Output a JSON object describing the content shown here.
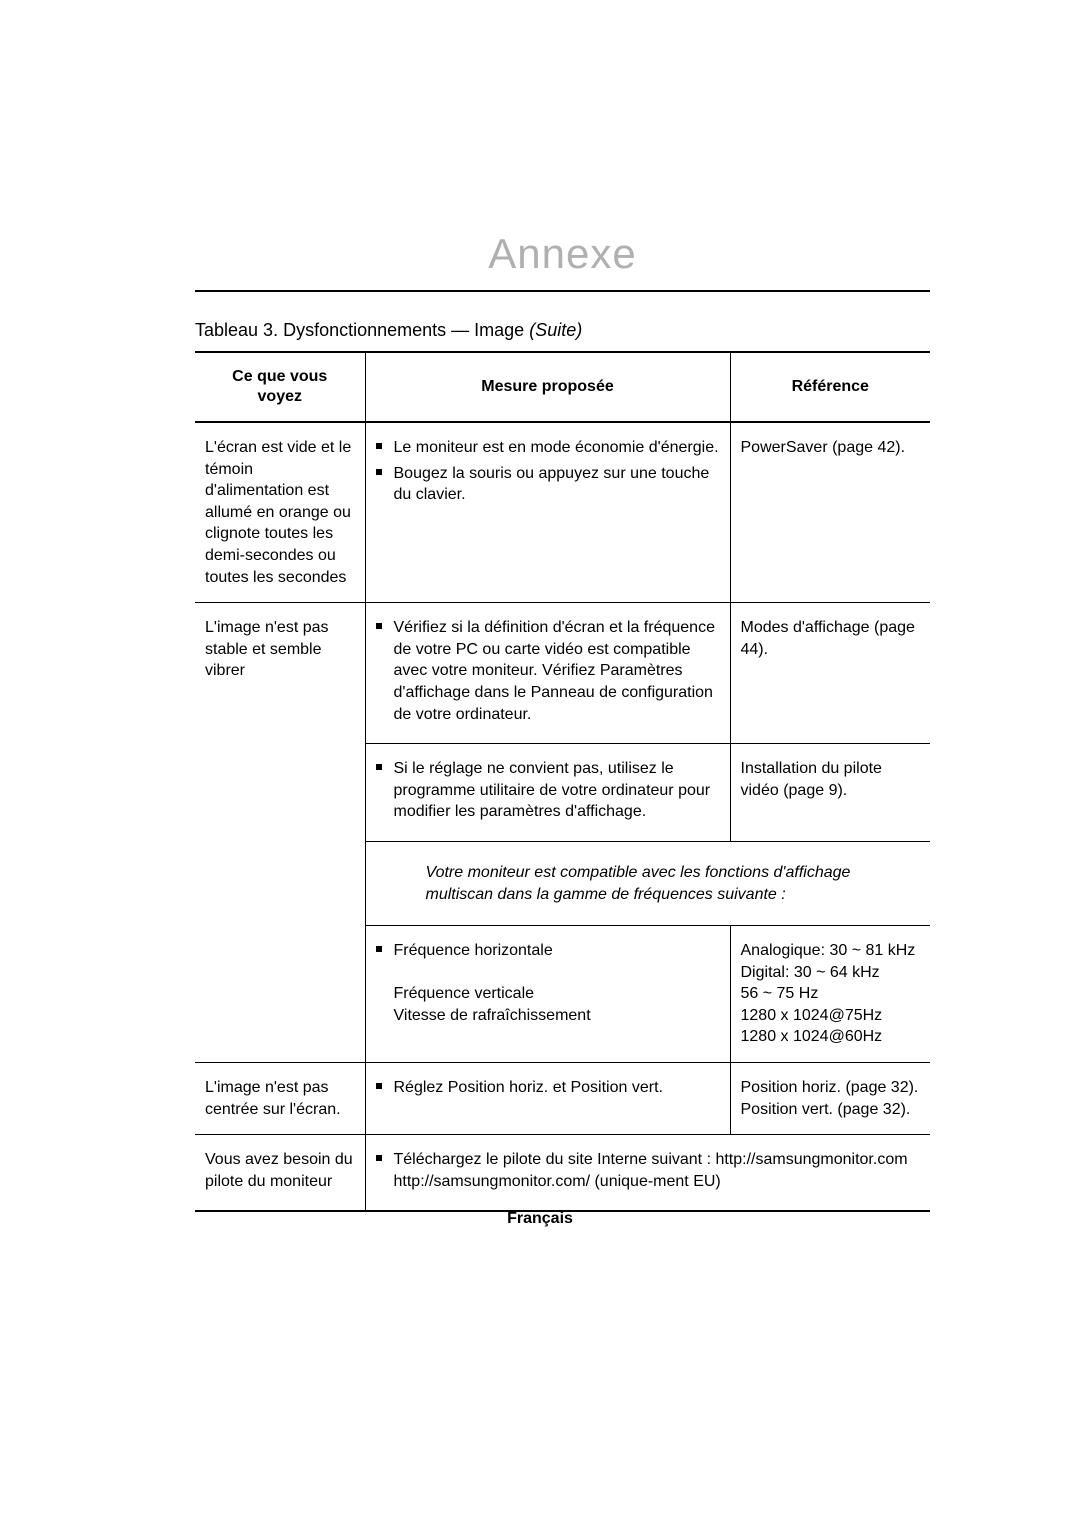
{
  "page": {
    "annexe_heading": "Annexe",
    "caption_prefix": "Tableau 3.  Dysfonctionnements — Image ",
    "caption_suffix_italic": "(Suite)",
    "footer_text": "Français"
  },
  "table": {
    "headers": {
      "col1": "Ce que vous\nvoyez",
      "col2": "Mesure proposée",
      "col3": "Référence"
    },
    "row1": {
      "symptom": "L'écran est vide et le témoin d'alimentation est allumé en orange ou clignote toutes les demi-secondes ou toutes les secondes",
      "measure_items": [
        "Le moniteur est en mode économie d'énergie.",
        "Bougez la souris ou appuyez sur une touche du clavier."
      ],
      "reference": "PowerSaver (page 42)."
    },
    "row2a": {
      "symptom": "L'image n'est pas stable et semble vibrer",
      "measure_items": [
        "Vérifiez si la définition d'écran et la fréquence de votre PC ou carte vidéo est compatible avec votre moniteur. Vérifiez Paramètres d'affichage dans le Panneau de configuration de votre ordinateur."
      ],
      "reference": "Modes d'affichage (page 44)."
    },
    "row2b": {
      "measure_items": [
        "Si le réglage ne convient pas, utilisez le programme utilitaire de votre ordinateur pour modifier les paramètres d'affichage."
      ],
      "reference": "Installation du pilote vidéo (page 9)."
    },
    "row2note": {
      "text": "Votre moniteur est compatible avec les fonctions d'affichage multiscan dans la gamme de fréquences suivante :"
    },
    "row2c": {
      "measure_lines": [
        "Fréquence horizontale",
        "",
        "Fréquence verticale",
        "Vitesse de rafraîchissement"
      ],
      "reference_lines": [
        "Analogique: 30 ~ 81 kHz",
        "Digital: 30 ~ 64 kHz",
        "56 ~ 75 Hz",
        "1280 x 1024@75Hz",
        "1280 x 1024@60Hz"
      ]
    },
    "row3": {
      "symptom": "L'image n'est pas centrée sur l'écran.",
      "measure_items": [
        "Réglez Position horiz. et Position vert."
      ],
      "reference": "Position horiz. (page 32). Position vert. (page 32)."
    },
    "row4": {
      "symptom": "Vous avez besoin du pilote du moniteur",
      "measure_items": [
        "Téléchargez le pilote du site Interne suivant : http://samsungmonitor.com http://samsungmonitor.com/ (unique-ment EU)"
      ]
    }
  }
}
